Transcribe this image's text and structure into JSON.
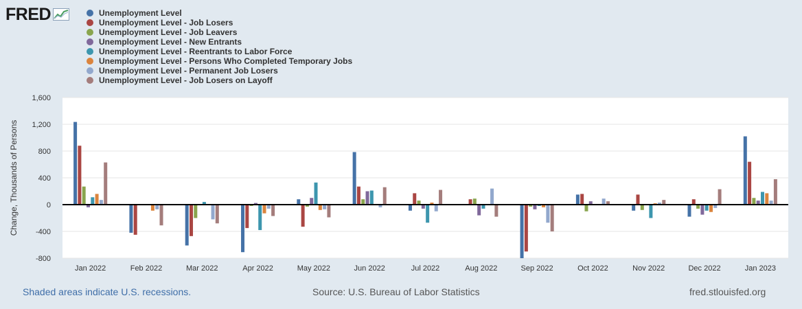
{
  "header": {
    "logo_text": "FRED"
  },
  "chart_data": {
    "type": "bar",
    "ylabel": "Change, Thousands of Persons",
    "ylim": [
      -800,
      1600
    ],
    "yticks": [
      -800,
      -400,
      0,
      400,
      800,
      1200,
      1600
    ],
    "ytick_labels": [
      "-800",
      "-400",
      "0",
      "400",
      "800",
      "1,200",
      "1,600"
    ],
    "categories": [
      "Jan 2022",
      "Feb 2022",
      "Mar 2022",
      "Apr 2022",
      "May 2022",
      "Jun 2022",
      "Jul 2022",
      "Aug 2022",
      "Sep 2022",
      "Oct 2022",
      "Nov 2022",
      "Dec 2022",
      "Jan 2023"
    ],
    "series": [
      {
        "name": "Unemployment Level",
        "color": "#4572a7",
        "values": [
          1235,
          -420,
          -610,
          -710,
          80,
          785,
          -90,
          0,
          -800,
          150,
          -90,
          -180,
          1020
        ]
      },
      {
        "name": "Unemployment Level - Job Losers",
        "color": "#aa4643",
        "values": [
          880,
          -450,
          -470,
          -350,
          -330,
          270,
          170,
          80,
          -700,
          160,
          150,
          80,
          640
        ]
      },
      {
        "name": "Unemployment Level - Job Leavers",
        "color": "#89a54e",
        "values": [
          270,
          -5,
          -200,
          -20,
          -30,
          80,
          60,
          90,
          -30,
          -100,
          -80,
          -60,
          100
        ]
      },
      {
        "name": "Unemployment Level - New Entrants",
        "color": "#80699b",
        "values": [
          -40,
          0,
          0,
          25,
          100,
          200,
          -60,
          -160,
          -70,
          50,
          0,
          -150,
          60
        ]
      },
      {
        "name": "Unemployment Level - Reentrants to Labor Force",
        "color": "#3d96ae",
        "values": [
          110,
          0,
          40,
          -380,
          330,
          210,
          -270,
          -60,
          -20,
          0,
          -200,
          -90,
          190
        ]
      },
      {
        "name": "Unemployment Level - Persons Who Completed Temporary Jobs",
        "color": "#db843d",
        "values": [
          160,
          -90,
          -10,
          -130,
          -80,
          0,
          30,
          0,
          -40,
          0,
          20,
          -110,
          170
        ]
      },
      {
        "name": "Unemployment Level - Permanent Job Losers",
        "color": "#92a8cd",
        "values": [
          70,
          -70,
          -220,
          -60,
          -70,
          -40,
          -100,
          240,
          -270,
          90,
          30,
          -50,
          60
        ]
      },
      {
        "name": "Unemployment Level - Job Losers on Layoff",
        "color": "#a47d7c",
        "values": [
          630,
          -310,
          -280,
          -170,
          -190,
          260,
          220,
          -180,
          -400,
          50,
          70,
          230,
          380
        ]
      }
    ]
  },
  "footer": {
    "recession_note": "Shaded areas indicate U.S. recessions.",
    "source": "Source: U.S. Bureau of Labor Statistics",
    "site": "fred.stlouisfed.org"
  }
}
